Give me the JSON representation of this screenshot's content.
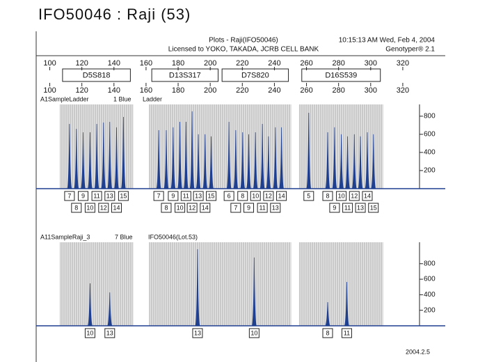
{
  "title": "IFO50046 : Raji (53)",
  "header": {
    "plot_title": "Plots - Raji(IFO50046)",
    "license": "Licensed to YOKO, TAKADA, JCRB CELL BANK",
    "timestamp": "10:15:13 AM Wed, Feb 4, 2004",
    "software": "Genotyper® 2.1"
  },
  "markers": [
    "D5S818",
    "D13S317",
    "D7S820",
    "D16S539"
  ],
  "footer": "2004.2.5",
  "chart_data": [
    {
      "type": "electropherogram",
      "sample": "A1SampleLadder",
      "dye": "1 Blue",
      "label": "Ladder",
      "color": "#1f3f8f",
      "xlim": [
        95,
        330
      ],
      "xticks": [
        100,
        120,
        140,
        160,
        180,
        200,
        220,
        240,
        260,
        280,
        300,
        320
      ],
      "ylim": [
        0,
        930
      ],
      "yticks": [
        200,
        400,
        600,
        800
      ],
      "groups": [
        {
          "x": [
            112.3,
            116.6,
            120.8,
            125.1,
            129.3,
            133.5,
            137.4,
            141.6,
            145.9
          ],
          "values": [
            715,
            660,
            623,
            623,
            715,
            730,
            738,
            677,
            792
          ],
          "alleles": [
            "7",
            "8",
            "9",
            "10",
            "11",
            "12",
            "13",
            "14",
            "15"
          ]
        },
        {
          "x": [
            167.9,
            172.6,
            176.9,
            181.1,
            184.9,
            188.7,
            192.6,
            196.8,
            200.6
          ],
          "values": [
            646,
            646,
            677,
            738,
            738,
            854,
            600,
            600,
            577
          ],
          "alleles": [
            "7",
            "8",
            "9",
            "10",
            "11",
            "12",
            "13",
            "14",
            "15"
          ]
        },
        {
          "x": [
            211.7,
            215.9,
            220.2,
            224.0,
            228.2,
            232.5,
            236.3,
            240.6,
            244.4
          ],
          "values": [
            738,
            646,
            623,
            600,
            623,
            715,
            577,
            677,
            677
          ],
          "alleles": [
            "6",
            "7",
            "8",
            "9",
            "10",
            "11",
            "12",
            "13",
            "14"
          ]
        },
        {
          "x": [
            261.4,
            273.2,
            277.5,
            281.7,
            285.6,
            289.8,
            293.6,
            297.9,
            301.7
          ],
          "values": [
            838,
            623,
            677,
            600,
            577,
            600,
            577,
            623,
            600
          ],
          "alleles": [
            "5",
            "8",
            "9",
            "10",
            "11",
            "12",
            "13",
            "14",
            "15"
          ]
        }
      ]
    },
    {
      "type": "electropherogram",
      "sample": "A11SampleRaji_3",
      "dye": "7 Blue",
      "label": "IFO50046(Lot.53)",
      "color": "#1f3f8f",
      "xlim": [
        95,
        330
      ],
      "xticks": [
        100,
        120,
        140,
        160,
        180,
        200,
        220,
        240,
        260,
        280,
        300,
        320
      ],
      "ylim": [
        0,
        1076
      ],
      "yticks": [
        200,
        400,
        600,
        800
      ],
      "groups": [
        {
          "x": [
            125.1,
            137.4
          ],
          "values": [
            547,
            430
          ],
          "alleles": [
            "10",
            "13"
          ]
        },
        {
          "x": [
            192.1
          ],
          "values": [
            986
          ],
          "alleles": [
            "13"
          ]
        },
        {
          "x": [
            227.4
          ],
          "values": [
            880
          ],
          "alleles": [
            "10"
          ]
        },
        {
          "x": [
            273.2,
            285.1
          ],
          "values": [
            305,
            565
          ],
          "alleles": [
            "8",
            "11"
          ]
        }
      ]
    }
  ]
}
